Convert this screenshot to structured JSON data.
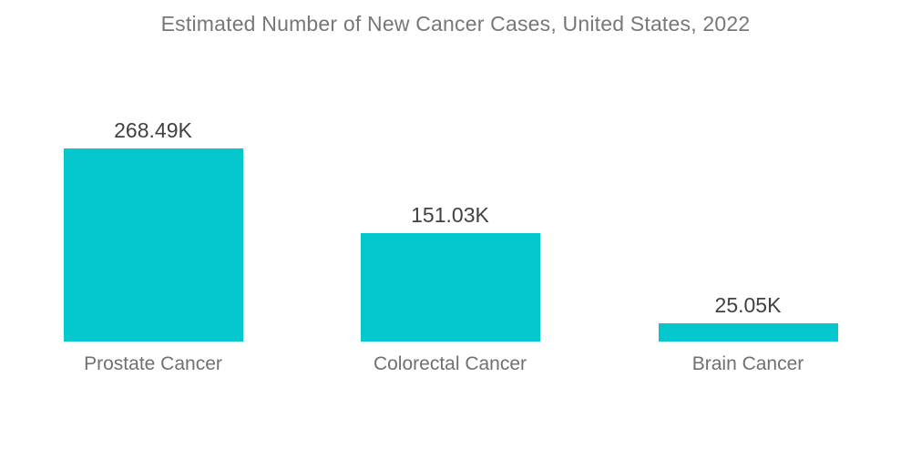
{
  "page": {
    "background": "#ffffff"
  },
  "chart_data": {
    "type": "bar",
    "title": "Estimated Number of New Cancer Cases, United States, 2022",
    "categories": [
      "Prostate Cancer",
      "Colorectal Cancer",
      "Brain Cancer"
    ],
    "values": [
      268.49,
      151.03,
      25.05
    ],
    "value_labels": [
      "268.49K",
      "151.03K",
      "25.05K"
    ],
    "xlabel": "",
    "ylabel": "",
    "ylim": [
      0,
      268.49
    ],
    "grid": false,
    "legend": false,
    "axes_visible": false,
    "colors": {
      "bar": "#04c8ce",
      "title": "#76777b",
      "value_label": "#404145",
      "category_label": "#6e7073",
      "background": "#ffffff"
    }
  }
}
